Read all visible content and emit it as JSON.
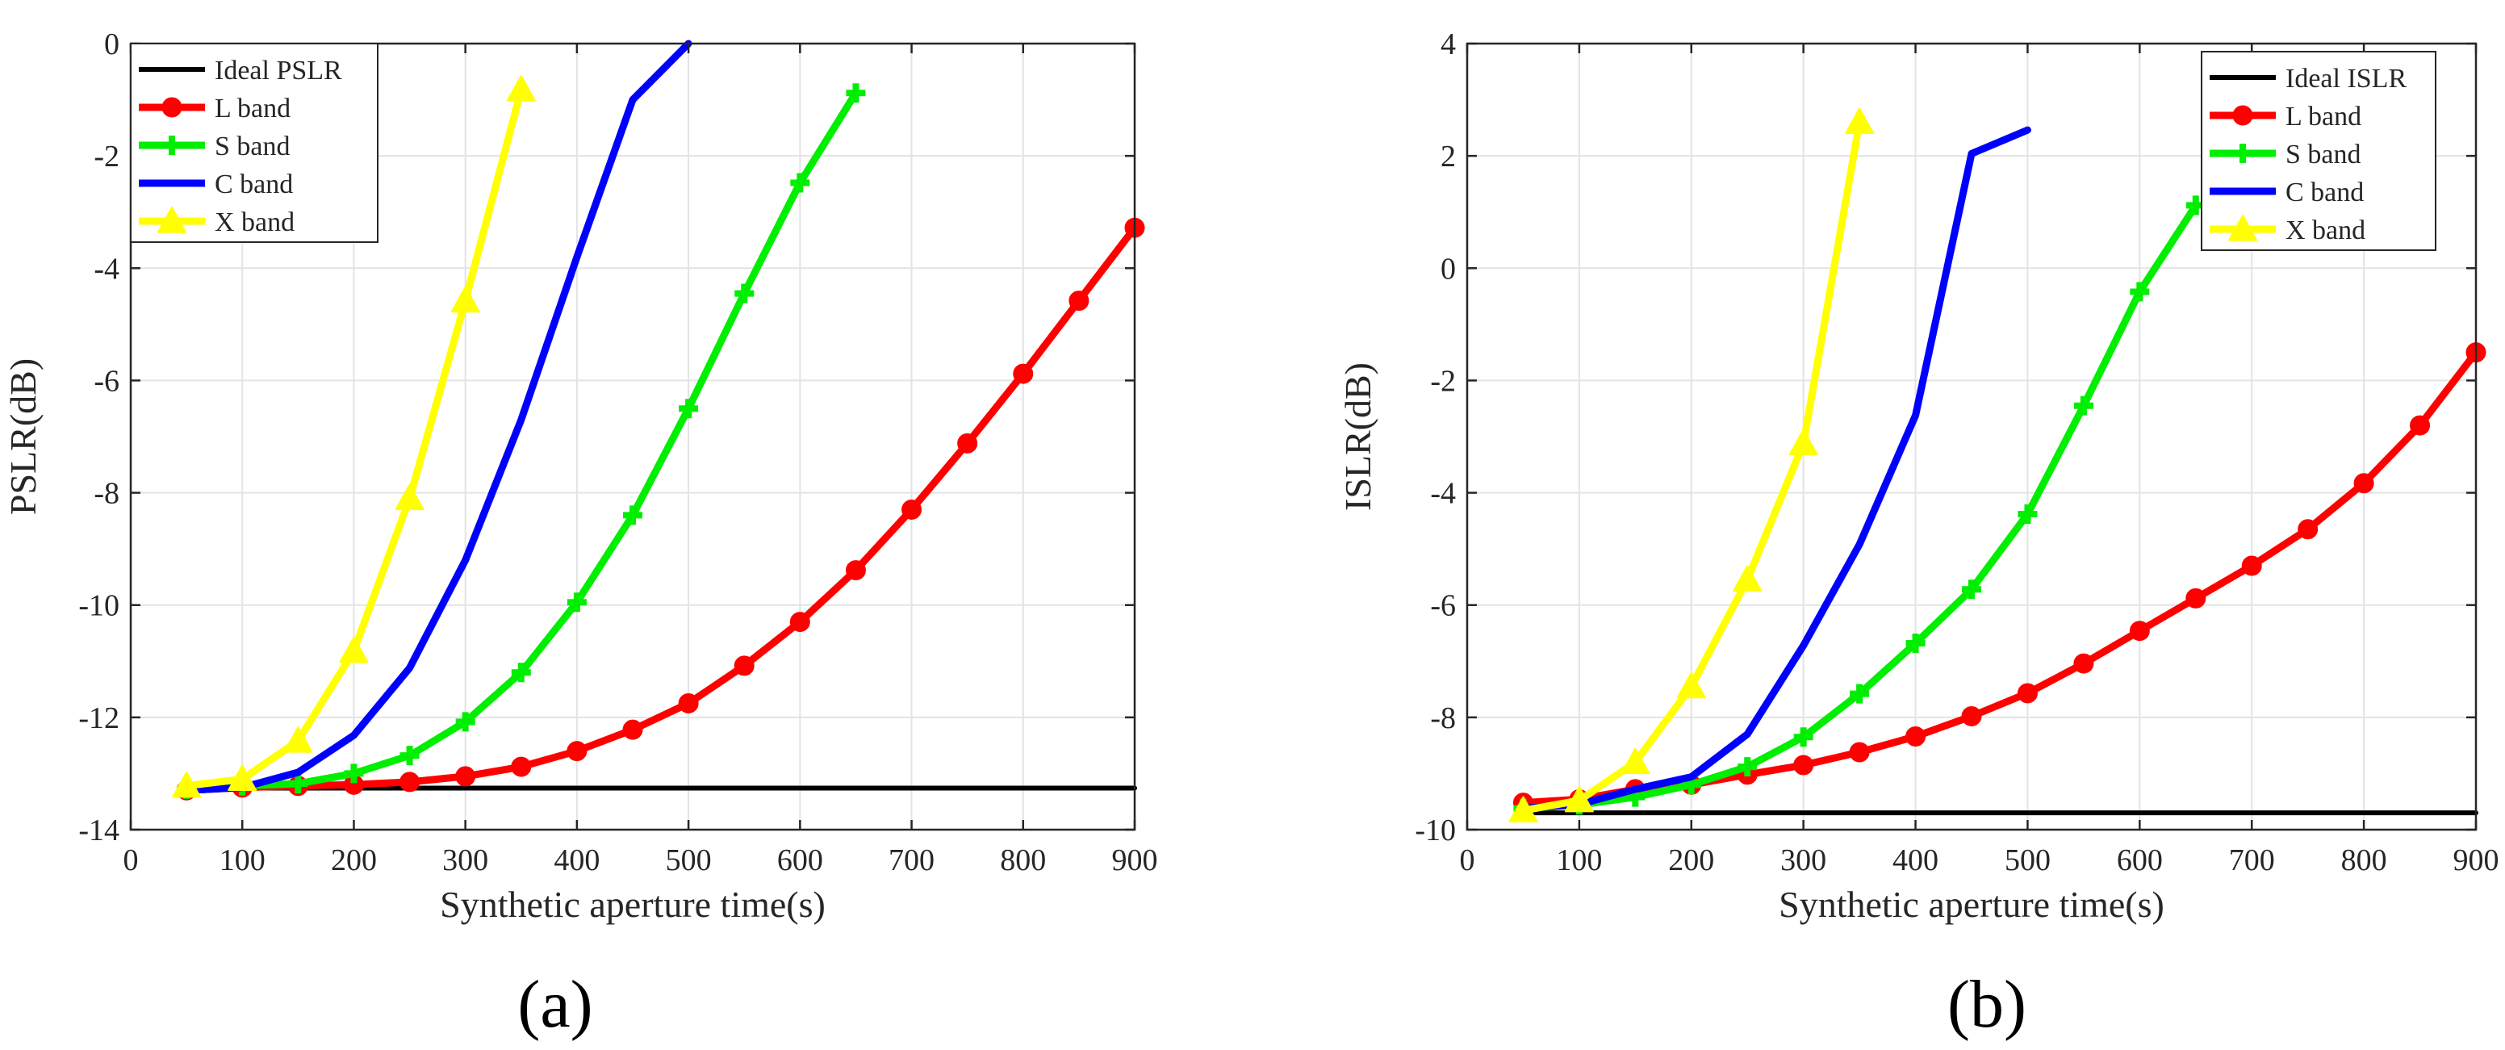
{
  "colors": {
    "ideal": "#000000",
    "l_band": "#ff0000",
    "s_band": "#00ee00",
    "c_band": "#0000ff",
    "x_band": "#ffff00",
    "grid": "#e3e3e3",
    "axis": "#262626"
  },
  "panel_labels": {
    "a": "(a)",
    "b": "(b)"
  },
  "chart_data": [
    {
      "type": "line",
      "title": "",
      "xlabel": "Synthetic aperture time(s)",
      "ylabel": "PSLR(dB)",
      "xlim": [
        0,
        900
      ],
      "ylim": [
        -14,
        0
      ],
      "xticks": [
        0,
        100,
        200,
        300,
        400,
        500,
        600,
        700,
        800,
        900
      ],
      "yticks": [
        -14,
        -12,
        -10,
        -8,
        -6,
        -4,
        -2,
        0
      ],
      "grid": true,
      "legend_position": "top-left",
      "series": [
        {
          "name": "Ideal PSLR",
          "color": "#000000",
          "marker": "none",
          "x": [
            50,
            900
          ],
          "y": [
            -13.26,
            -13.26
          ]
        },
        {
          "name": "L band",
          "color": "#ff0000",
          "marker": "circle",
          "x": [
            50,
            100,
            150,
            200,
            250,
            300,
            350,
            400,
            450,
            500,
            550,
            600,
            650,
            700,
            750,
            800,
            850,
            900
          ],
          "y": [
            -13.3,
            -13.25,
            -13.22,
            -13.2,
            -13.15,
            -13.05,
            -12.88,
            -12.6,
            -12.22,
            -11.75,
            -11.08,
            -10.3,
            -9.38,
            -8.3,
            -7.12,
            -5.88,
            -4.58,
            -3.28
          ]
        },
        {
          "name": "S band",
          "color": "#00ee00",
          "marker": "plus",
          "x": [
            50,
            100,
            150,
            200,
            250,
            300,
            350,
            400,
            450,
            500,
            550,
            600,
            650
          ],
          "y": [
            -13.28,
            -13.22,
            -13.18,
            -13.0,
            -12.68,
            -12.08,
            -11.2,
            -9.95,
            -8.4,
            -6.5,
            -4.45,
            -2.48,
            -0.88
          ]
        },
        {
          "name": "C band",
          "color": "#0000ff",
          "marker": "none",
          "x": [
            50,
            100,
            150,
            200,
            250,
            300,
            350,
            400,
            450,
            500
          ],
          "y": [
            -13.3,
            -13.25,
            -12.98,
            -12.32,
            -11.12,
            -9.2,
            -6.7,
            -3.8,
            -1.0,
            0.0
          ]
        },
        {
          "name": "X band",
          "color": "#ffff00",
          "marker": "triangle",
          "x": [
            50,
            100,
            150,
            200,
            250,
            300,
            350
          ],
          "y": [
            -13.22,
            -13.1,
            -12.42,
            -10.82,
            -8.1,
            -4.58,
            -0.82
          ]
        }
      ]
    },
    {
      "type": "line",
      "title": "",
      "xlabel": "Synthetic aperture time(s)",
      "ylabel": "ISLR(dB)",
      "xlim": [
        0,
        900
      ],
      "ylim": [
        -10,
        4
      ],
      "xticks": [
        0,
        100,
        200,
        300,
        400,
        500,
        600,
        700,
        800,
        900
      ],
      "yticks": [
        -10,
        -8,
        -6,
        -4,
        -2,
        0,
        2,
        4
      ],
      "grid": true,
      "legend_position": "top-right",
      "series": [
        {
          "name": "Ideal ISLR",
          "color": "#000000",
          "marker": "none",
          "x": [
            50,
            900
          ],
          "y": [
            -9.7,
            -9.7
          ]
        },
        {
          "name": "L band",
          "color": "#ff0000",
          "marker": "circle",
          "x": [
            50,
            100,
            150,
            200,
            250,
            300,
            350,
            400,
            450,
            500,
            550,
            600,
            650,
            700,
            750,
            800,
            850,
            900
          ],
          "y": [
            -9.52,
            -9.46,
            -9.28,
            -9.2,
            -9.02,
            -8.85,
            -8.62,
            -8.34,
            -7.98,
            -7.57,
            -7.04,
            -6.46,
            -5.88,
            -5.3,
            -4.65,
            -3.83,
            -2.8,
            -1.5
          ]
        },
        {
          "name": "S band",
          "color": "#00ee00",
          "marker": "plus",
          "x": [
            50,
            100,
            150,
            200,
            250,
            300,
            350,
            400,
            450,
            500,
            550,
            600,
            650
          ],
          "y": [
            -9.62,
            -9.56,
            -9.42,
            -9.2,
            -8.88,
            -8.35,
            -7.58,
            -6.68,
            -5.72,
            -4.38,
            -2.45,
            -0.42,
            1.12
          ]
        },
        {
          "name": "C band",
          "color": "#0000ff",
          "marker": "none",
          "x": [
            50,
            100,
            150,
            200,
            250,
            300,
            350,
            400,
            450,
            500
          ],
          "y": [
            -9.62,
            -9.55,
            -9.28,
            -9.06,
            -8.3,
            -6.72,
            -4.92,
            -2.62,
            2.04,
            2.46
          ]
        },
        {
          "name": "X band",
          "color": "#ffff00",
          "marker": "triangle",
          "x": [
            50,
            100,
            150,
            200,
            250,
            300,
            350
          ],
          "y": [
            -9.66,
            -9.48,
            -8.8,
            -7.45,
            -5.55,
            -3.12,
            2.6
          ]
        }
      ]
    }
  ]
}
